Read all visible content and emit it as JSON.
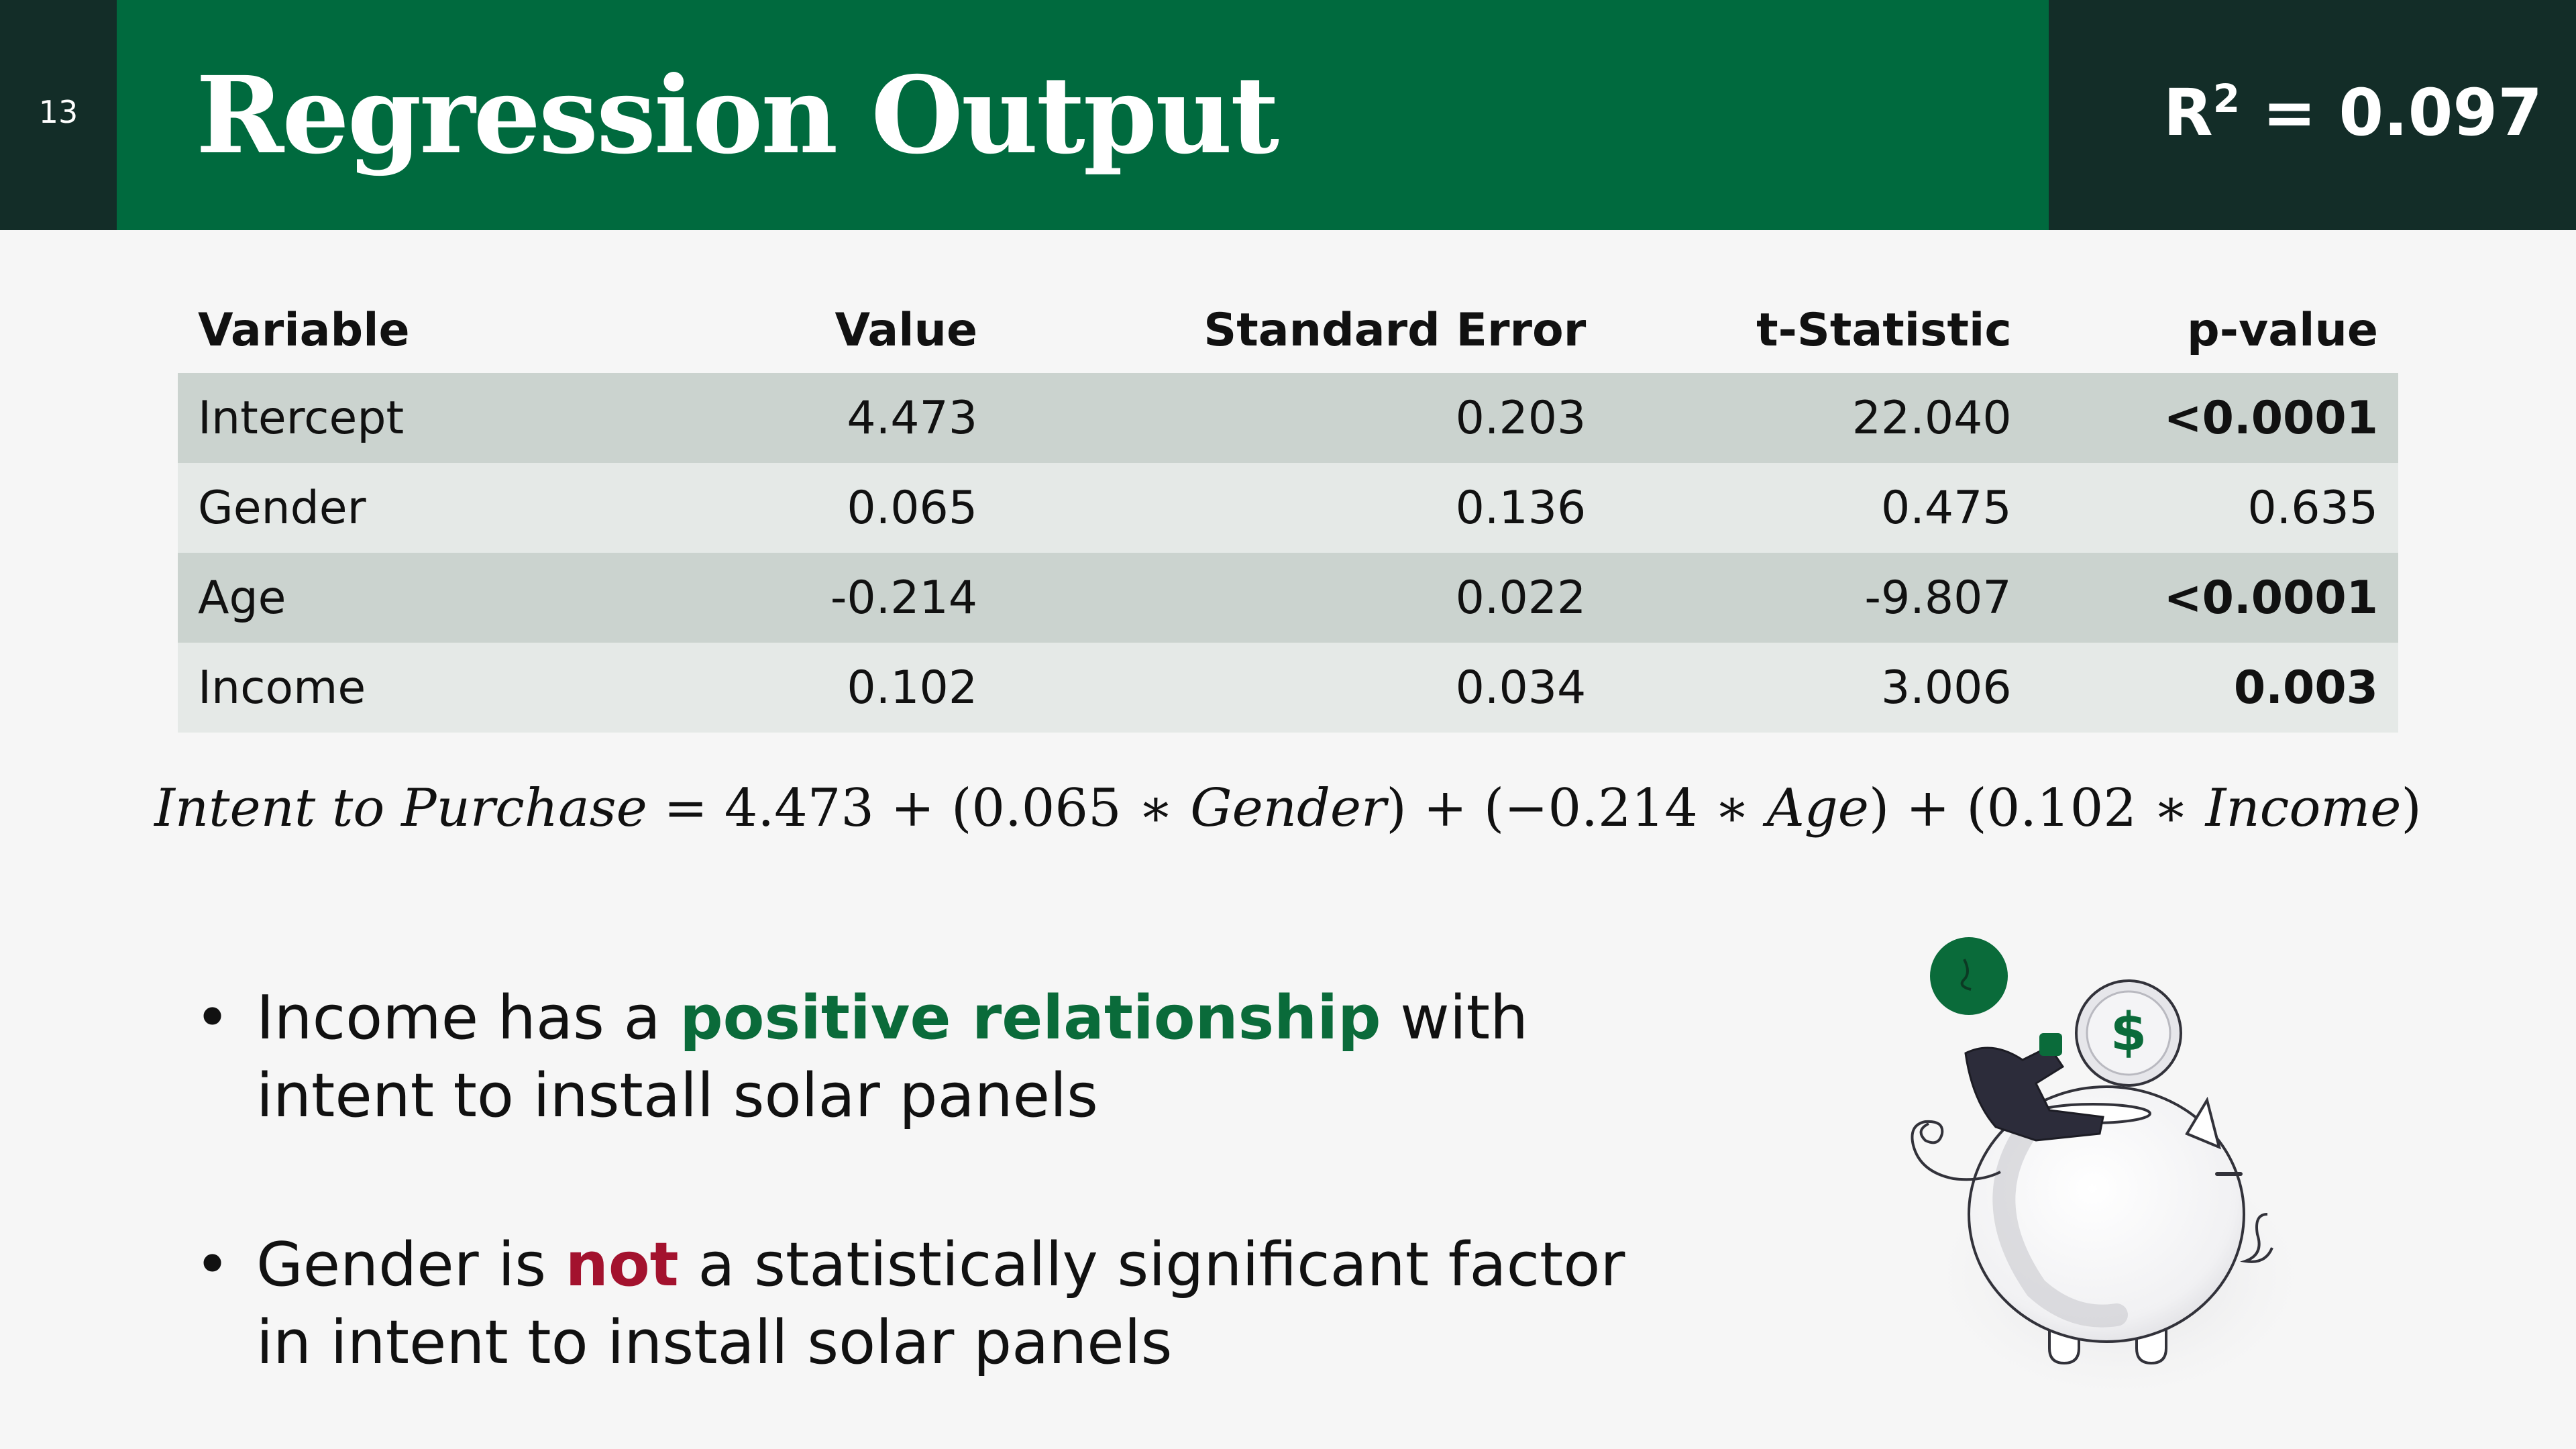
{
  "header": {
    "slide_number": "13",
    "title": "Regression Output",
    "r_squared_label": "R",
    "r_squared_sup": "2",
    "r_squared_value": " = 0.097"
  },
  "table": {
    "headers": [
      "Variable",
      "Value",
      "Standard Error",
      "t-Statistic",
      "p-value"
    ],
    "rows": [
      {
        "variable": "Intercept",
        "value": "4.473",
        "std_error": "0.203",
        "t_stat": "22.040",
        "p_value": "<0.0001",
        "significant": true
      },
      {
        "variable": "Gender",
        "value": "0.065",
        "std_error": "0.136",
        "t_stat": "0.475",
        "p_value": "0.635",
        "significant": false
      },
      {
        "variable": "Age",
        "value": "-0.214",
        "std_error": "0.022",
        "t_stat": "-9.807",
        "p_value": "<0.0001",
        "significant": true
      },
      {
        "variable": "Income",
        "value": "0.102",
        "std_error": "0.034",
        "t_stat": "3.006",
        "p_value": "0.003",
        "significant": true
      }
    ]
  },
  "equation": {
    "lhs": "Intent to Purchase",
    "eq": " = 4.473 + (0.065 ∗ ",
    "gender": "Gender",
    "mid1": ") + (−0.214 ∗ ",
    "age": "Age",
    "mid2": ") + (0.102 ∗ ",
    "income": "Income",
    "end": ")"
  },
  "bullets": [
    {
      "pre": "Income has a ",
      "highlight": "positive relationship",
      "post": " with intent to install solar panels"
    },
    {
      "pre": "Gender is ",
      "highlight": "not",
      "post": " a statistically significant factor in intent to install solar panels"
    }
  ],
  "illustration": {
    "icon": "piggy-bank-icon",
    "coin_symbol": "$"
  },
  "colors": {
    "title_bar": "#006a3e",
    "dark_panel": "#132d28",
    "positive": "#0a6b3a",
    "negative": "#a3122e",
    "row_dark": "#cbd3cf",
    "row_light": "#e5e9e7"
  }
}
